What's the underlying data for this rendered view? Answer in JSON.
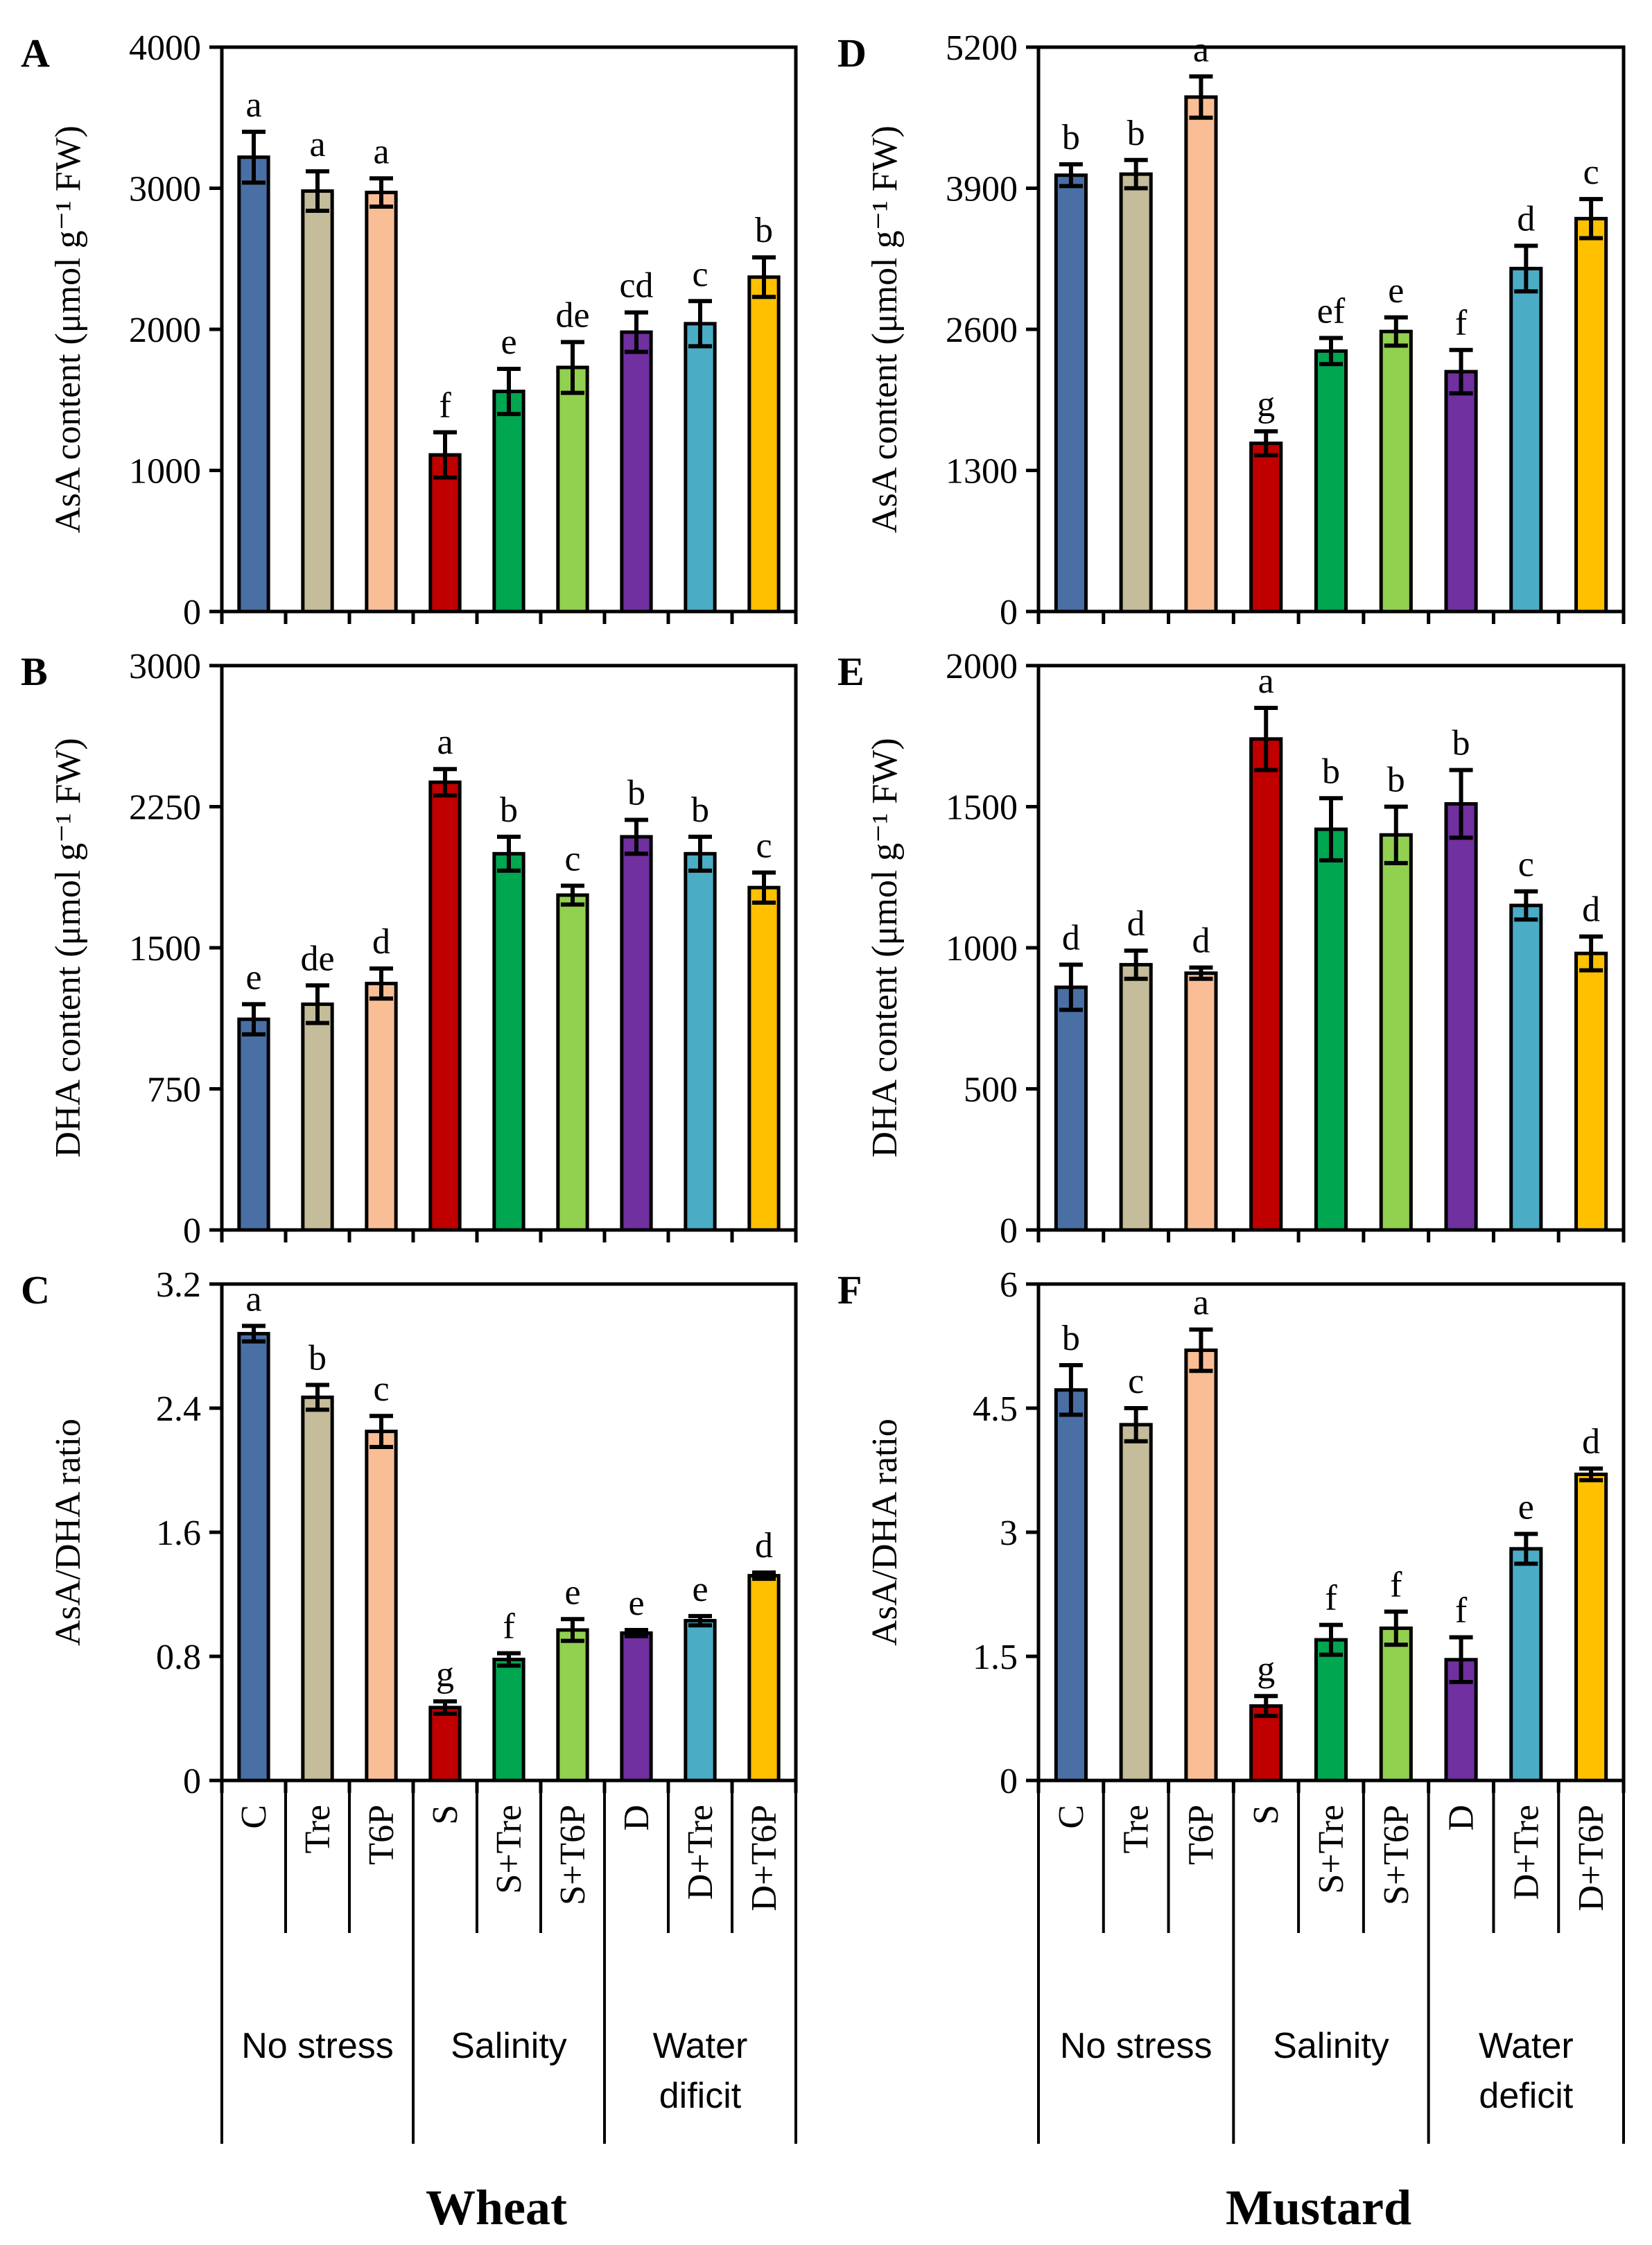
{
  "chart_data": {
    "categories": [
      "C",
      "Tre",
      "T6P",
      "S",
      "S+Tre",
      "S+T6P",
      "D",
      "D+Tre",
      "D+T6P"
    ],
    "bar_colors": [
      "#4a6fa5",
      "#c4bc9a",
      "#f9be95",
      "#c00000",
      "#00a650",
      "#92d050",
      "#7030a0",
      "#4bacc6",
      "#ffc000"
    ],
    "columns": [
      {
        "crop": "Wheat",
        "groups": [
          {
            "label_lines": [
              "No stress"
            ]
          },
          {
            "label_lines": [
              "Salinity"
            ]
          },
          {
            "label_lines": [
              "Water",
              "dificit"
            ]
          }
        ]
      },
      {
        "crop": "Mustard",
        "groups": [
          {
            "label_lines": [
              "No stress"
            ]
          },
          {
            "label_lines": [
              "Salinity"
            ]
          },
          {
            "label_lines": [
              "Water",
              "deficit"
            ]
          }
        ]
      }
    ],
    "panels": [
      {
        "id": "A",
        "type": "bar",
        "column": 0,
        "row": 0,
        "ylabel": "AsA content (μmol g⁻¹ FW)",
        "ylim": [
          0,
          4000
        ],
        "yticks": [
          "0",
          "1000",
          "2000",
          "3000",
          "4000"
        ],
        "values": [
          3220,
          2980,
          2970,
          1110,
          1560,
          1730,
          1980,
          2040,
          2370
        ],
        "errors": [
          180,
          140,
          100,
          160,
          160,
          180,
          140,
          160,
          140
        ],
        "letters": [
          "a",
          "a",
          "a",
          "f",
          "e",
          "de",
          "cd",
          "c",
          "b"
        ]
      },
      {
        "id": "B",
        "type": "bar",
        "column": 0,
        "row": 1,
        "ylabel": "DHA content (μmol g⁻¹ FW)",
        "ylim": [
          0,
          3000
        ],
        "yticks": [
          "0",
          "750",
          "1500",
          "2250",
          "3000"
        ],
        "values": [
          1120,
          1200,
          1310,
          2380,
          2000,
          1780,
          2090,
          2000,
          1820
        ],
        "errors": [
          80,
          100,
          80,
          70,
          90,
          50,
          90,
          90,
          80
        ],
        "letters": [
          "e",
          "de",
          "d",
          "a",
          "b",
          "c",
          "b",
          "b",
          "c"
        ]
      },
      {
        "id": "C",
        "type": "bar",
        "column": 0,
        "row": 2,
        "ylabel": "AsA/DHA ratio",
        "ylim": [
          0,
          3.2
        ],
        "yticks": [
          "0",
          "0.8",
          "1.6",
          "2.4",
          "3.2"
        ],
        "values": [
          2.88,
          2.47,
          2.25,
          0.47,
          0.78,
          0.97,
          0.95,
          1.03,
          1.32
        ],
        "errors": [
          0.05,
          0.08,
          0.1,
          0.04,
          0.04,
          0.07,
          0.02,
          0.03,
          0.02
        ],
        "letters": [
          "a",
          "b",
          "c",
          "g",
          "f",
          "e",
          "e",
          "e",
          "d"
        ]
      },
      {
        "id": "D",
        "type": "bar",
        "column": 1,
        "row": 0,
        "ylabel": "AsA content (μmol g⁻¹ FW)",
        "ylim": [
          0,
          5200
        ],
        "yticks": [
          "0",
          "1300",
          "2600",
          "3900",
          "5200"
        ],
        "values": [
          4020,
          4030,
          4740,
          1550,
          2400,
          2580,
          2210,
          3160,
          3620
        ],
        "errors": [
          100,
          130,
          190,
          110,
          120,
          130,
          200,
          210,
          180
        ],
        "letters": [
          "b",
          "b",
          "a",
          "g",
          "ef",
          "e",
          "f",
          "d",
          "c"
        ]
      },
      {
        "id": "E",
        "type": "bar",
        "column": 1,
        "row": 1,
        "ylabel": "DHA content (μmol g⁻¹ FW)",
        "ylim": [
          0,
          2000
        ],
        "yticks": [
          "0",
          "500",
          "1000",
          "1500",
          "2000"
        ],
        "values": [
          860,
          940,
          910,
          1740,
          1420,
          1400,
          1510,
          1150,
          980
        ],
        "errors": [
          80,
          50,
          20,
          110,
          110,
          100,
          120,
          50,
          60
        ],
        "letters": [
          "d",
          "d",
          "d",
          "a",
          "b",
          "b",
          "b",
          "c",
          "d"
        ]
      },
      {
        "id": "F",
        "type": "bar",
        "column": 1,
        "row": 2,
        "ylabel": "AsA/DHA ratio",
        "ylim": [
          0,
          6
        ],
        "yticks": [
          "0",
          "1.5",
          "3",
          "4.5",
          "6"
        ],
        "values": [
          4.72,
          4.3,
          5.2,
          0.9,
          1.7,
          1.84,
          1.46,
          2.8,
          3.7
        ],
        "errors": [
          0.3,
          0.2,
          0.25,
          0.12,
          0.18,
          0.2,
          0.27,
          0.18,
          0.07
        ],
        "letters": [
          "b",
          "c",
          "a",
          "g",
          "f",
          "f",
          "f",
          "e",
          "d"
        ]
      }
    ]
  }
}
